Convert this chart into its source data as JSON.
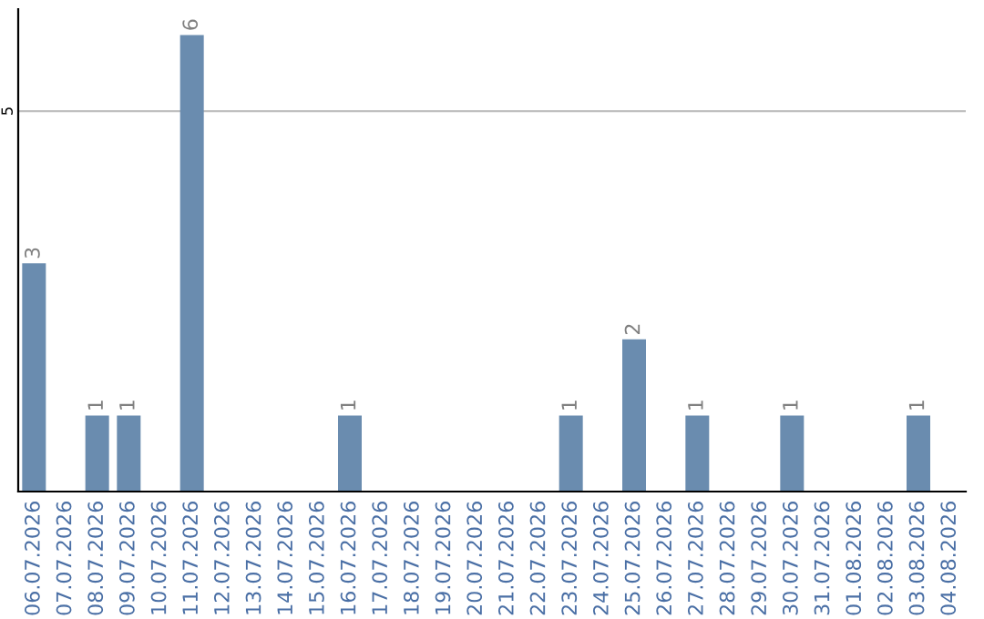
{
  "chart_data": {
    "type": "bar",
    "categories": [
      "06.07.2026",
      "07.07.2026",
      "08.07.2026",
      "09.07.2026",
      "10.07.2026",
      "11.07.2026",
      "12.07.2026",
      "13.07.2026",
      "14.07.2026",
      "15.07.2026",
      "16.07.2026",
      "17.07.2026",
      "18.07.2026",
      "19.07.2026",
      "20.07.2026",
      "21.07.2026",
      "22.07.2026",
      "23.07.2026",
      "24.07.2026",
      "25.07.2026",
      "26.07.2026",
      "27.07.2026",
      "28.07.2026",
      "29.07.2026",
      "30.07.2026",
      "31.07.2026",
      "01.08.2026",
      "02.08.2026",
      "03.08.2026",
      "04.08.2026"
    ],
    "values": [
      3,
      0,
      1,
      1,
      0,
      6,
      0,
      0,
      0,
      0,
      1,
      0,
      0,
      0,
      0,
      0,
      0,
      1,
      0,
      2,
      0,
      1,
      0,
      0,
      1,
      0,
      0,
      0,
      1,
      0
    ],
    "value_labels": [
      "3",
      null,
      "1",
      "1",
      null,
      "6",
      null,
      null,
      null,
      null,
      "1",
      null,
      null,
      null,
      null,
      null,
      null,
      "1",
      null,
      "2",
      null,
      "1",
      null,
      null,
      "1",
      null,
      null,
      null,
      "1",
      null
    ],
    "color": "#6a8caf",
    "ylim": [
      0,
      6.34
    ],
    "yticks": [
      5
    ],
    "grid": "y"
  }
}
